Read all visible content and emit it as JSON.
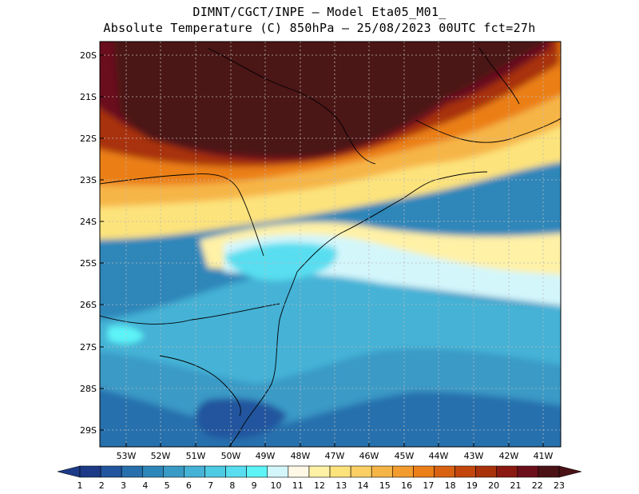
{
  "title_line1": "DIMNT/CGCT/INPE –  Model Eta05_M01_",
  "title_line2": "Absolute Temperature (C) 850hPa –  25/08/2023 00UTC fct=27h",
  "lat_labels": [
    "20S",
    "21S",
    "22S",
    "23S",
    "24S",
    "25S",
    "26S",
    "27S",
    "28S",
    "29S"
  ],
  "lon_labels": [
    "53W",
    "52W",
    "51W",
    "50W",
    "49W",
    "48W",
    "47W",
    "46W",
    "45W",
    "44W",
    "43W",
    "42W",
    "41W"
  ],
  "colorbar": {
    "labels": [
      "1",
      "2",
      "3",
      "4",
      "5",
      "6",
      "7",
      "8",
      "9",
      "10",
      "11",
      "12",
      "13",
      "14",
      "15",
      "16",
      "17",
      "18",
      "19",
      "20",
      "21",
      "22",
      "23"
    ],
    "colors": [
      "#1c3a87",
      "#21559e",
      "#2770ad",
      "#2d86b9",
      "#3a9ac6",
      "#45b2d6",
      "#4fcae3",
      "#58def0",
      "#5df4f8",
      "#d3f6fb",
      "#fff8e6",
      "#fff1a6",
      "#fde37c",
      "#fbcf63",
      "#f6b547",
      "#f29b2e",
      "#eb7f18",
      "#d86212",
      "#c3470d",
      "#a8330b",
      "#8b1a12",
      "#6b0f1b",
      "#4b1216"
    ]
  }
}
